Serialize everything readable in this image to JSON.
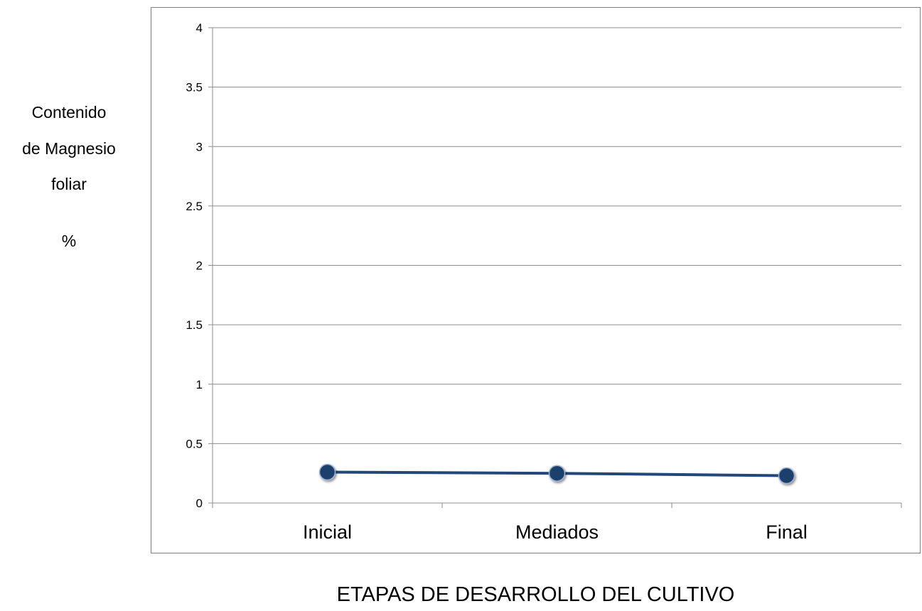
{
  "y_title_lines": [
    "Contenido",
    "de Magnesio",
    "foliar",
    "%"
  ],
  "chart_data": {
    "type": "line",
    "categories": [
      "Inicial",
      "Mediados",
      "Final"
    ],
    "series": [
      {
        "values": [
          0.26,
          0.25,
          0.23
        ],
        "color": "#24477a",
        "marker_color": "#1f3f6e"
      }
    ],
    "ylim": [
      0,
      4
    ],
    "yticks": [
      0,
      0.5,
      1,
      1.5,
      2,
      2.5,
      3,
      3.5,
      4
    ],
    "ytick_labels": [
      "0",
      "0.5",
      "1",
      "1.5",
      "2",
      "2.5",
      "3",
      "3.5",
      "4"
    ],
    "xlabel": "ETAPAS DE DESARROLLO DEL CULTIVO",
    "ylabel": "Contenido de Magnesio foliar %",
    "grid": true,
    "gridline_color": "#8c8c8c"
  }
}
